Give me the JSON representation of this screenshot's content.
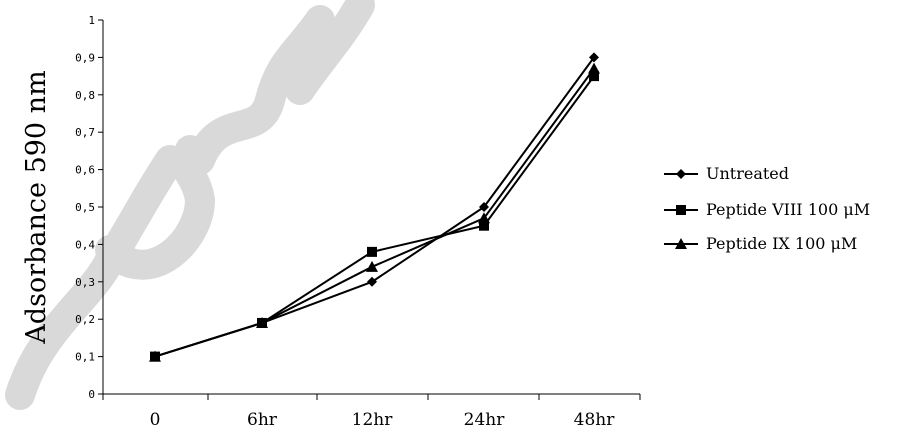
{
  "chart_data": {
    "type": "line",
    "title": "",
    "xlabel": "",
    "ylabel": "Adsorbance 590 nm",
    "categories": [
      "0",
      "6hr",
      "12hr",
      "24hr",
      "48hr"
    ],
    "ylim": [
      0,
      1
    ],
    "yticks": [
      "0",
      "0,1",
      "0,2",
      "0,3",
      "0,4",
      "0,5",
      "0,6",
      "0,7",
      "0,8",
      "0,9",
      "1"
    ],
    "grid": false,
    "legend_position": "right",
    "series": [
      {
        "name": "Untreated",
        "marker": "diamond",
        "values": [
          0.1,
          0.19,
          0.3,
          0.5,
          0.9
        ]
      },
      {
        "name": "Peptide VIII 100 μM",
        "marker": "square",
        "values": [
          0.1,
          0.19,
          0.38,
          0.45,
          0.85
        ]
      },
      {
        "name": "Peptide IX 100 μM",
        "marker": "triangle",
        "values": [
          0.1,
          0.19,
          0.34,
          0.47,
          0.87
        ]
      }
    ],
    "line_color": "#000000"
  }
}
